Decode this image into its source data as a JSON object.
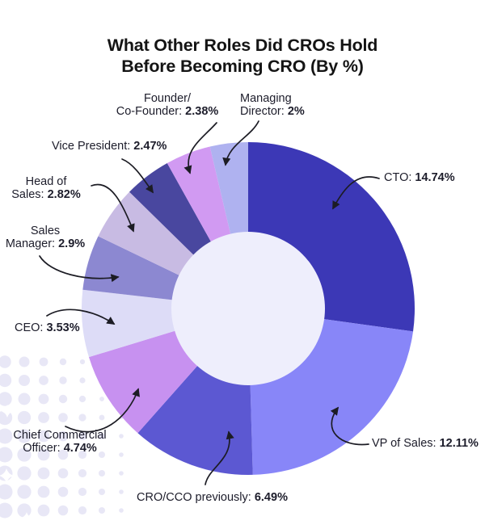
{
  "title_lines": [
    "What Other Roles Did CROs Hold",
    "Before Becoming CRO (By %)"
  ],
  "chart_data": {
    "type": "pie",
    "variant": "donut",
    "title": "What Other Roles Did CROs Hold Before Becoming CRO (By %)",
    "unit": "%",
    "start_angle_deg": 0,
    "direction": "clockwise",
    "hole_color": "#EEEEFC",
    "segments": [
      {
        "id": "cto",
        "label": "CTO",
        "value": 14.74,
        "color": "#3C38B6"
      },
      {
        "id": "vp_of_sales",
        "label": "VP of Sales",
        "value": 12.11,
        "color": "#8886F8"
      },
      {
        "id": "cro_cco",
        "label": "CRO/CCO previously",
        "value": 6.49,
        "color": "#5C58D2"
      },
      {
        "id": "chief_commercial_officer",
        "label": "Chief Commercial Officer",
        "value": 4.74,
        "color": "#C791F0"
      },
      {
        "id": "ceo",
        "label": "CEO",
        "value": 3.53,
        "color": "#DDDCF7"
      },
      {
        "id": "sales_manager",
        "label": "Sales Manager",
        "value": 2.9,
        "color": "#8C88D1"
      },
      {
        "id": "head_of_sales",
        "label": "Head of Sales",
        "value": 2.82,
        "color": "#C8BBE3"
      },
      {
        "id": "vice_president",
        "label": "Vice President",
        "value": 2.47,
        "color": "#49479F"
      },
      {
        "id": "founder_co_founder",
        "label": "Founder/Co-Founder",
        "value": 2.38,
        "color": "#D19AF2"
      },
      {
        "id": "managing_director",
        "label": "Managing Director",
        "value": 2.0,
        "color": "#AFB2F0"
      }
    ]
  },
  "callouts": {
    "founder": {
      "line1": "Founder/",
      "prefix": "Co-Founder:",
      "value": "2.38%"
    },
    "managing_director": {
      "line1": "Managing",
      "prefix": "Director:",
      "value": "2%"
    },
    "vice_president": {
      "prefix": "Vice President:",
      "value": "2.47%"
    },
    "head_of_sales": {
      "line1": "Head of",
      "prefix": "Sales:",
      "value": "2.82%"
    },
    "sales_manager": {
      "line1": "Sales",
      "prefix": "Manager:",
      "value": "2.9%"
    },
    "ceo": {
      "prefix": "CEO:",
      "value": "3.53%"
    },
    "chief_commercial": {
      "line1": "Chief Commercial",
      "prefix": "Officer:",
      "value": "4.74%"
    },
    "cro_cco": {
      "prefix": "CRO/CCO previously:",
      "value": "6.49%"
    },
    "cto": {
      "prefix": "CTO:",
      "value": "14.74%"
    },
    "vp_of_sales": {
      "prefix": "VP of Sales:",
      "value": "12.11%"
    }
  },
  "colors": {
    "background": "#FFFFFF",
    "title_text": "#141414",
    "label_text": "#1D1D2B",
    "arrow": "#1C1C24",
    "decor_dot": "#E8E7F6",
    "donut_hole": "#EEEEFC"
  }
}
